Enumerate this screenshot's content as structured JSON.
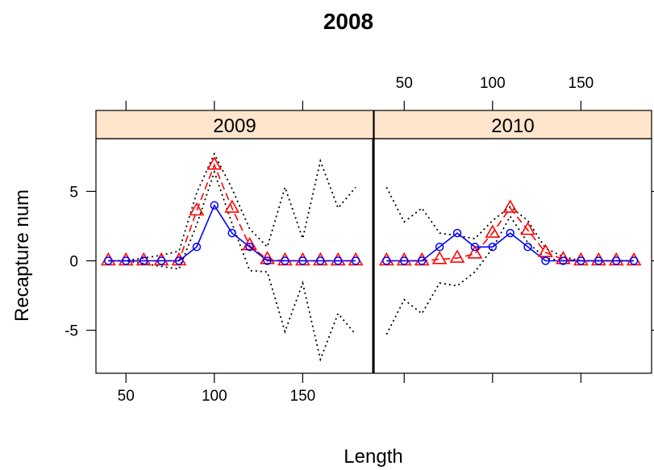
{
  "chart_data": {
    "type": "line",
    "title": "2008",
    "xlabel": "Length",
    "ylabel": "Recapture num",
    "xlim": [
      33,
      190
    ],
    "ylim": [
      -8.1,
      8.8
    ],
    "x_ticks": [
      50,
      100,
      150
    ],
    "y_ticks": [
      -5,
      0,
      5
    ],
    "grid": false,
    "colors": {
      "strip": "#ffe5cc",
      "observed": "#0000ff",
      "predicted": "#ff0000",
      "bounds": "#000000"
    },
    "panels": [
      {
        "strip_label": "2009",
        "x": [
          40,
          50,
          60,
          70,
          80,
          90,
          100,
          110,
          120,
          130,
          140,
          150,
          160,
          170,
          180
        ],
        "series": [
          {
            "role": "observed",
            "marker": "circle",
            "line": "solid",
            "values": [
              0,
              0,
              0,
              0,
              0,
              1,
              4,
              2,
              1,
              0,
              0,
              0,
              0,
              0,
              0
            ]
          },
          {
            "role": "predicted",
            "marker": "triangle",
            "line": "dashed",
            "values": [
              0,
              0,
              0,
              0,
              0,
              3.6,
              6.9,
              3.8,
              1.1,
              0.1,
              0,
              0,
              0,
              0,
              0
            ]
          },
          {
            "role": "upper",
            "marker": "none",
            "line": "dotted",
            "values": [
              0,
              0,
              0.2,
              0.4,
              0.7,
              4.9,
              7.7,
              5.2,
              2.3,
              1.0,
              5.3,
              1.6,
              7.2,
              3.8,
              5.3
            ]
          },
          {
            "role": "lower",
            "marker": "none",
            "line": "dotted",
            "values": [
              0,
              0,
              -0.2,
              -0.4,
              -0.6,
              2.6,
              6.4,
              2.7,
              -0.7,
              -0.8,
              -5.1,
              -1.6,
              -7.1,
              -3.8,
              -5.3
            ]
          }
        ]
      },
      {
        "strip_label": "2010",
        "x": [
          40,
          50,
          60,
          70,
          80,
          90,
          100,
          110,
          120,
          130,
          140,
          150,
          160,
          170,
          180
        ],
        "series": [
          {
            "role": "observed",
            "marker": "circle",
            "line": "solid",
            "values": [
              0,
              0,
              0,
              1,
              2,
              1,
              1,
              2,
              1,
              0,
              0,
              0,
              0,
              0,
              0
            ]
          },
          {
            "role": "predicted",
            "marker": "triangle",
            "line": "dashed",
            "values": [
              0,
              0,
              0,
              0.1,
              0.2,
              0.5,
              2.0,
              3.8,
              2.2,
              0.6,
              0.1,
              0,
              0,
              0,
              0
            ]
          },
          {
            "role": "upper",
            "marker": "none",
            "line": "dotted",
            "values": [
              5.3,
              2.8,
              3.8,
              2.0,
              1.8,
              1.6,
              2.9,
              3.9,
              2.9,
              0.9,
              0.3,
              0,
              0,
              0,
              0
            ]
          },
          {
            "role": "lower",
            "marker": "none",
            "line": "dotted",
            "values": [
              -5.3,
              -2.8,
              -3.8,
              -1.6,
              -1.8,
              -0.8,
              0.9,
              3.2,
              1.3,
              0.2,
              0,
              0,
              0,
              0,
              0
            ]
          }
        ]
      }
    ]
  }
}
